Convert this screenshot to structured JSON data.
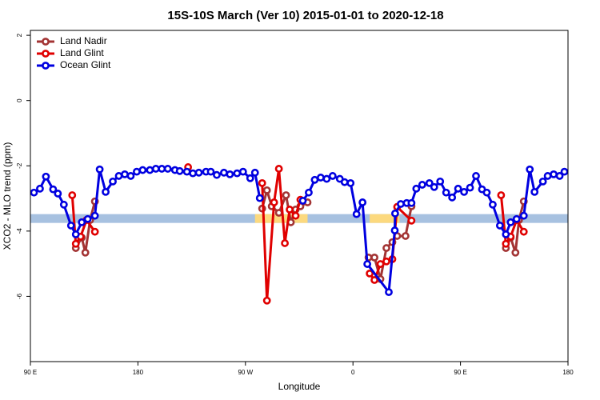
{
  "chart_data": {
    "type": "line",
    "title": "15S-10S March (Ver 10)   2015-01-01 to 2020-12-18",
    "x_label": "Longitude",
    "y_label": "XCO2 - MLO trend (ppm)",
    "xlim": [
      90,
      540
    ],
    "xticks": [
      {
        "value": 90,
        "label": "90 E"
      },
      180,
      {
        "value": 270,
        "label": "90 W"
      },
      {
        "value": 360,
        "label": "0"
      },
      {
        "value": 450,
        "label": "90 E"
      },
      {
        "value": 540,
        "label": "180"
      }
    ],
    "ylim": [
      -8,
      2.15
    ],
    "yticks": [
      -6,
      -4,
      -2,
      0,
      2
    ],
    "legend": "top-left",
    "band_y": [
      -3.75,
      -3.48
    ],
    "bands": [
      {
        "from": 90,
        "to": 540,
        "color": "#a7c1e0"
      },
      {
        "from": 278,
        "to": 322,
        "color": "#fcd97e"
      },
      {
        "from": 374,
        "to": 399,
        "color": "#fcd97e"
      }
    ],
    "series": [
      {
        "name": "Land Nadir",
        "color": "#a33434",
        "x": [
          128,
          133,
          136,
          140,
          144,
          null,
          284,
          288,
          292,
          298,
          304,
          308,
          312,
          316,
          322,
          null,
          373,
          378,
          383,
          388,
          393,
          397,
          404,
          409,
          null,
          488,
          492,
          496,
          499,
          503
        ],
        "values": [
          -4.52,
          -4.2,
          -4.66,
          -3.66,
          -3.09,
          null,
          -3.31,
          -2.75,
          -3.24,
          -3.44,
          -2.9,
          -3.73,
          -3.34,
          -3.24,
          -3.12,
          null,
          -4.81,
          -4.81,
          -5.47,
          -4.52,
          -4.34,
          -4.15,
          -4.15,
          -3.24,
          null,
          -4.52,
          -4.2,
          -4.66,
          -3.66,
          -3.09
        ]
      },
      {
        "name": "Land Glint",
        "color": "#e00000",
        "x": [
          125,
          128,
          132,
          137,
          144,
          null,
          222,
          null,
          284,
          288,
          294,
          298,
          303,
          307,
          312,
          316,
          null,
          374,
          378,
          383,
          388,
          393,
          397,
          409,
          null,
          484,
          488,
          492,
          497,
          503
        ],
        "values": [
          -2.9,
          -4.39,
          -4.17,
          -3.66,
          -4.02,
          null,
          -2.04,
          null,
          -2.53,
          -6.13,
          -3.12,
          -2.09,
          -4.37,
          -3.34,
          -3.53,
          -3.04,
          null,
          -5.3,
          -5.5,
          -5.01,
          -4.93,
          -4.86,
          -3.26,
          -3.68,
          null,
          -2.9,
          -4.39,
          -4.17,
          -3.66,
          -4.02
        ]
      },
      {
        "name": "Ocean Glint",
        "color": "#0000e0",
        "x": [
          93,
          98,
          103,
          109,
          113,
          118,
          124,
          128,
          133,
          138,
          144,
          148,
          153,
          159,
          164,
          169,
          174,
          179,
          184,
          190,
          195,
          200,
          205,
          211,
          215,
          221,
          226,
          231,
          237,
          241,
          246,
          252,
          257,
          263,
          268,
          274,
          278,
          282,
          null,
          318,
          323,
          328,
          333,
          338,
          343,
          349,
          353,
          358,
          363,
          368,
          372,
          390,
          395,
          395.3,
          400,
          405,
          409,
          413,
          418,
          424,
          428,
          433,
          438,
          443,
          448,
          453,
          458,
          463,
          468,
          472,
          477,
          483,
          488,
          492,
          497,
          503,
          508,
          512,
          519,
          523,
          528,
          533,
          537
        ],
        "values": [
          -2.82,
          -2.7,
          -2.33,
          -2.72,
          -2.85,
          -3.19,
          -3.83,
          -4.1,
          -3.73,
          -3.63,
          -3.53,
          -2.11,
          -2.8,
          -2.48,
          -2.31,
          -2.26,
          -2.31,
          -2.18,
          -2.13,
          -2.13,
          -2.09,
          -2.09,
          -2.09,
          -2.13,
          -2.16,
          -2.18,
          -2.23,
          -2.21,
          -2.18,
          -2.18,
          -2.28,
          -2.21,
          -2.26,
          -2.23,
          -2.18,
          -2.38,
          -2.21,
          -2.99,
          null,
          -3.07,
          -2.82,
          -2.43,
          -2.36,
          -2.4,
          -2.31,
          -2.4,
          -2.5,
          -2.53,
          -3.48,
          -3.12,
          -5.01,
          -5.87,
          -3.98,
          -3.46,
          -3.17,
          -3.14,
          -3.14,
          -2.7,
          -2.58,
          -2.53,
          -2.65,
          -2.48,
          -2.82,
          -2.97,
          -2.7,
          -2.8,
          -2.67,
          -2.31,
          -2.72,
          -2.82,
          -3.19,
          -3.83,
          -4.1,
          -3.73,
          -3.63,
          -3.53,
          -2.11,
          -2.8,
          -2.48,
          -2.31,
          -2.26,
          -2.31,
          -2.18
        ]
      }
    ]
  }
}
